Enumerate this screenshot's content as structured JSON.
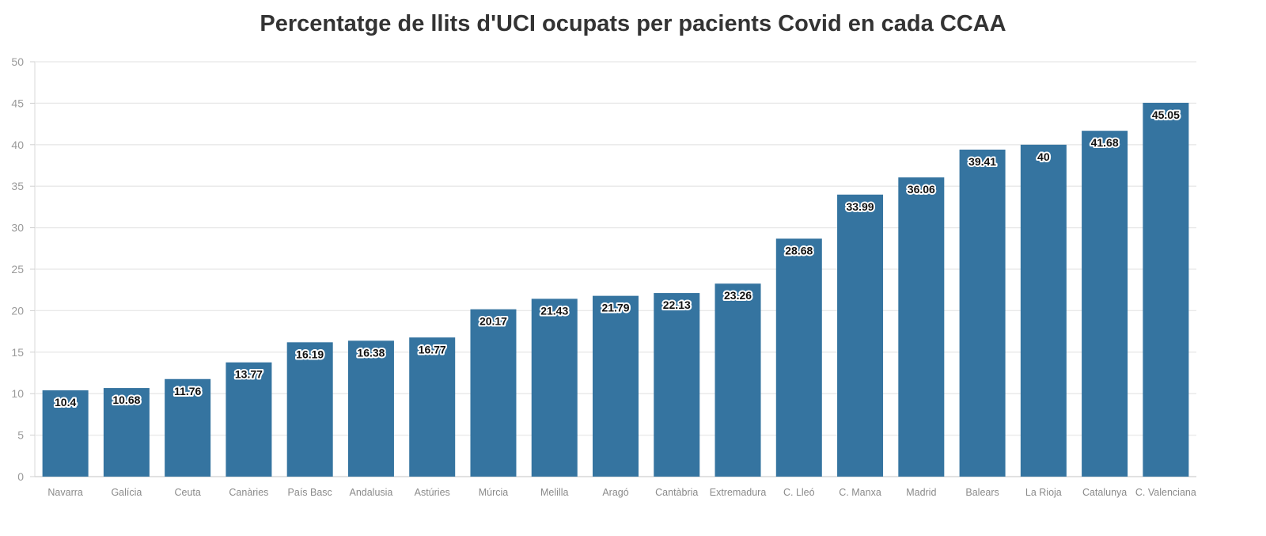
{
  "chart_data": {
    "type": "bar",
    "title": "Percentatge de llits d'UCI ocupats per pacients Covid en cada CCAA",
    "xlabel": "",
    "ylabel": "",
    "ylim": [
      0,
      50
    ],
    "yticks": [
      0,
      5,
      10,
      15,
      20,
      25,
      30,
      35,
      40,
      45,
      50
    ],
    "grid": true,
    "legend": "none",
    "bar_color": "#3574a0",
    "categories": [
      "Navarra",
      "Galícia",
      "Ceuta",
      "Canàries",
      "País Basc",
      "Andalusia",
      "Astúries",
      "Múrcia",
      "Melilla",
      "Aragó",
      "Cantàbria",
      "Extremadura",
      "C. Lleó",
      "C. Manxa",
      "Madrid",
      "Balears",
      "La Rioja",
      "Catalunya",
      "C. Valenciana"
    ],
    "values": [
      10.4,
      10.68,
      11.76,
      13.77,
      16.19,
      16.38,
      16.77,
      20.17,
      21.43,
      21.79,
      22.13,
      23.26,
      28.68,
      33.99,
      36.06,
      39.41,
      40,
      41.68,
      45.05
    ]
  }
}
